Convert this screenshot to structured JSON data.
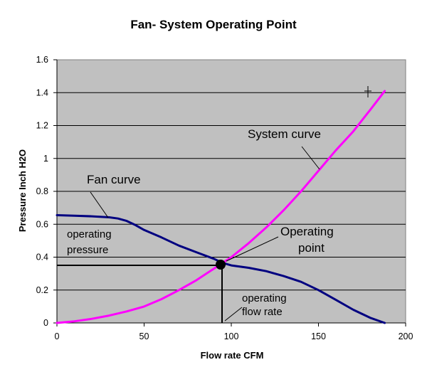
{
  "chart_data": {
    "type": "line",
    "title": "Fan- System Operating Point",
    "xlabel": "Flow rate CFM",
    "ylabel": "Pressure Inch H2O",
    "xlim": [
      0,
      200
    ],
    "ylim": [
      0,
      1.6
    ],
    "x_ticks": [
      "0",
      "50",
      "100",
      "150",
      "200"
    ],
    "y_ticks": [
      "0",
      "0.2",
      "0.4",
      "0.6",
      "0.8",
      "1",
      "1.2",
      "1.4",
      "1.6"
    ],
    "grid": "horizontal",
    "background_color": "#c0c0c0",
    "series": [
      {
        "name": "Fan curve",
        "color": "#000080",
        "x": [
          0,
          10,
          20,
          30,
          35,
          40,
          45,
          50,
          60,
          70,
          80,
          90,
          95,
          100,
          110,
          120,
          130,
          140,
          150,
          160,
          170,
          180,
          188
        ],
        "y": [
          0.655,
          0.652,
          0.648,
          0.642,
          0.635,
          0.62,
          0.595,
          0.565,
          0.52,
          0.47,
          0.43,
          0.39,
          0.365,
          0.35,
          0.335,
          0.315,
          0.285,
          0.25,
          0.2,
          0.14,
          0.08,
          0.03,
          0.0
        ]
      },
      {
        "name": "System curve",
        "color": "#ff00ff",
        "x": [
          0,
          10,
          20,
          30,
          40,
          50,
          60,
          70,
          80,
          90,
          95,
          100,
          110,
          120,
          130,
          140,
          150,
          160,
          170,
          180,
          188
        ],
        "y": [
          0.0,
          0.01,
          0.025,
          0.045,
          0.07,
          0.1,
          0.145,
          0.2,
          0.26,
          0.33,
          0.365,
          0.4,
          0.485,
          0.58,
          0.685,
          0.8,
          0.925,
          1.05,
          1.165,
          1.3,
          1.41
        ]
      }
    ],
    "operating_point": {
      "x": 94,
      "y": 0.355
    },
    "annotations": {
      "fan_curve": "Fan curve",
      "system_curve": "System curve",
      "operating_pressure_line1": "operating",
      "operating_pressure_line2": "pressure",
      "operating_point_line1": "Operating",
      "operating_point_line2": "point",
      "operating_flow_line1": "operating",
      "operating_flow_line2": "flow rate"
    }
  }
}
